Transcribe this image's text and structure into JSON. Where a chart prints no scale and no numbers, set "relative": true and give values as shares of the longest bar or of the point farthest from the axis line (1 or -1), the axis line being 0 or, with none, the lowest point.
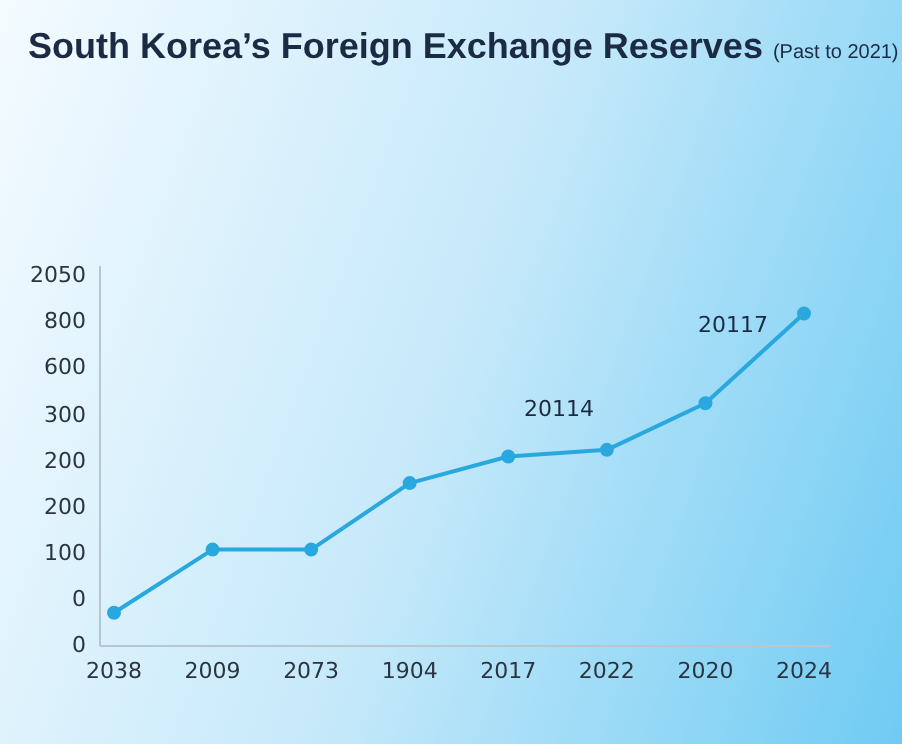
{
  "chart_data": {
    "type": "line",
    "title": "South Korea’s Foreign Exchange Reserves",
    "subtitle": "(Past to 2021)",
    "categories": [
      "2038",
      "2009",
      "2073",
      "1904",
      "2017",
      "2022",
      "2020",
      "2024"
    ],
    "series": [
      {
        "color": "#29a8e0",
        "values": [
          0.1,
          0.29,
          0.29,
          0.49,
          0.57,
          0.59,
          0.73,
          1
        ]
      }
    ],
    "relative": true,
    "annotations": [
      "20114",
      "20117",
      "0",
      "0",
      "100",
      "200",
      "200",
      "300",
      "600",
      "800",
      "2050"
    ],
    "grid": false,
    "legend": false,
    "marker": "circle",
    "line_style": "solid"
  }
}
